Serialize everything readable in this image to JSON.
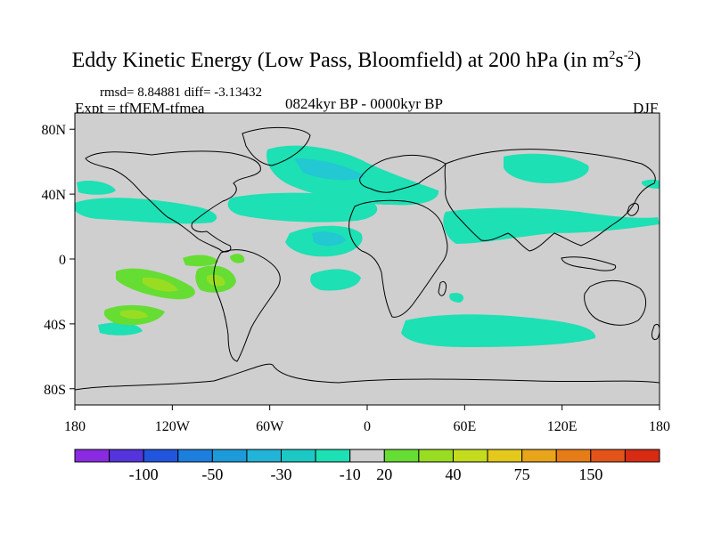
{
  "title_text": "Eddy Kinetic Energy (Low Pass, Bloomfield) at 200 hPa (in m",
  "title_units_sup1": "2",
  "title_units_mid": "s",
  "title_units_sup2": "-2",
  "title_close": ")",
  "stats": "rmsd= 8.84881 diff= -3.13432",
  "experiment": "Expt = tfMEM-tfmea",
  "period": "0824kyr BP - 0000kyr BP",
  "season": "DJF",
  "lat_labels": [
    {
      "lat": 80,
      "label": "80N"
    },
    {
      "lat": 40,
      "label": "40N"
    },
    {
      "lat": 0,
      "label": "0"
    },
    {
      "lat": -40,
      "label": "40S"
    },
    {
      "lat": -80,
      "label": "80S"
    }
  ],
  "lon_labels": [
    {
      "lon": -180,
      "label": "180"
    },
    {
      "lon": -120,
      "label": "120W"
    },
    {
      "lon": -60,
      "label": "60W"
    },
    {
      "lon": 0,
      "label": "0"
    },
    {
      "lon": 60,
      "label": "60E"
    },
    {
      "lon": 120,
      "label": "120E"
    },
    {
      "lon": 180,
      "label": "180"
    }
  ],
  "colorbar": {
    "colors": [
      "#8a2be2",
      "#5533dd",
      "#2255dd",
      "#1c7fde",
      "#1d9ad9",
      "#22b4d6",
      "#1cc8c4",
      "#1de0b4",
      "#cfcfcf",
      "#66dd33",
      "#99dd22",
      "#c4dc1e",
      "#e4c81c",
      "#e8a41a",
      "#e67c17",
      "#e2541a",
      "#d82b14"
    ],
    "labels": [
      {
        "after_box": 2,
        "text": "-100"
      },
      {
        "after_box": 4,
        "text": "-50"
      },
      {
        "after_box": 6,
        "text": "-30"
      },
      {
        "after_box": 8,
        "text": "-10"
      },
      {
        "after_box": 9,
        "text": "20"
      },
      {
        "after_box": 11,
        "text": "40"
      },
      {
        "after_box": 13,
        "text": "75"
      },
      {
        "after_box": 15,
        "text": "150"
      }
    ]
  },
  "colors": {
    "land_ocean_bg": "#cfcfcf",
    "neg_small": "#1de0b4",
    "neg_mid": "#22c8d2",
    "pos_small": "#66dd33",
    "pos_mid": "#99dd22"
  }
}
